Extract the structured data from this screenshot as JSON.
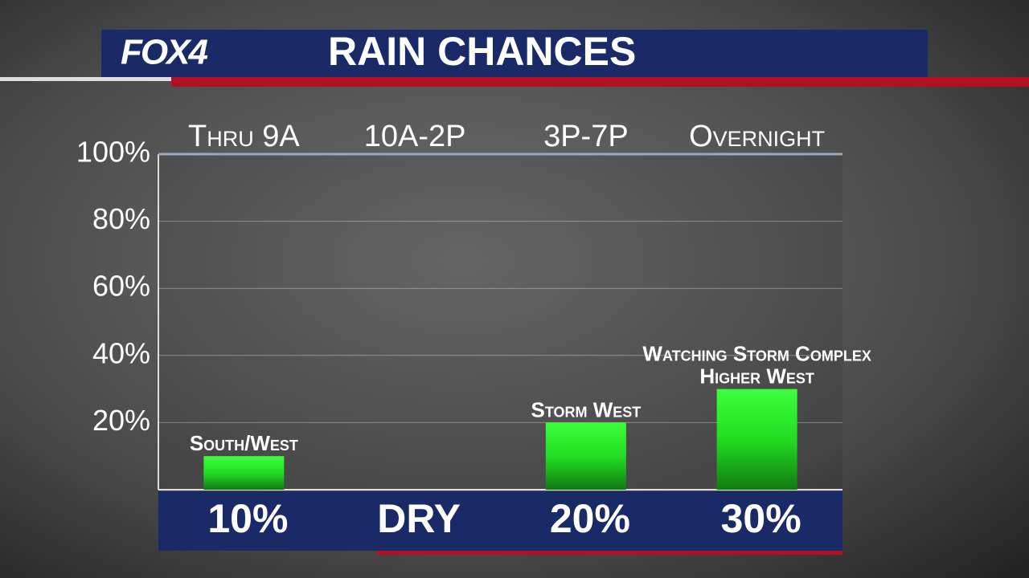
{
  "header": {
    "logo": "FOX4",
    "title": "RAIN CHANCES"
  },
  "chart_data": {
    "type": "bar",
    "categories": [
      "Thru 9A",
      "10A-2P",
      "3P-7P",
      "Overnight"
    ],
    "values": [
      10,
      null,
      20,
      30
    ],
    "value_labels": [
      "10%",
      "DRY",
      "20%",
      "30%"
    ],
    "annotations": [
      [
        "South/West"
      ],
      null,
      [
        "Storm West"
      ],
      [
        "Watching Storm Complex",
        "Higher West"
      ]
    ],
    "color": "#2ee82e",
    "ylim": [
      0,
      100
    ],
    "yticks": [
      {
        "value": 20,
        "label": "20%"
      },
      {
        "value": 40,
        "label": "40%"
      },
      {
        "value": 60,
        "label": "60%"
      },
      {
        "value": 80,
        "label": "80%"
      },
      {
        "value": 100,
        "label": "100%"
      }
    ],
    "grid": true
  }
}
